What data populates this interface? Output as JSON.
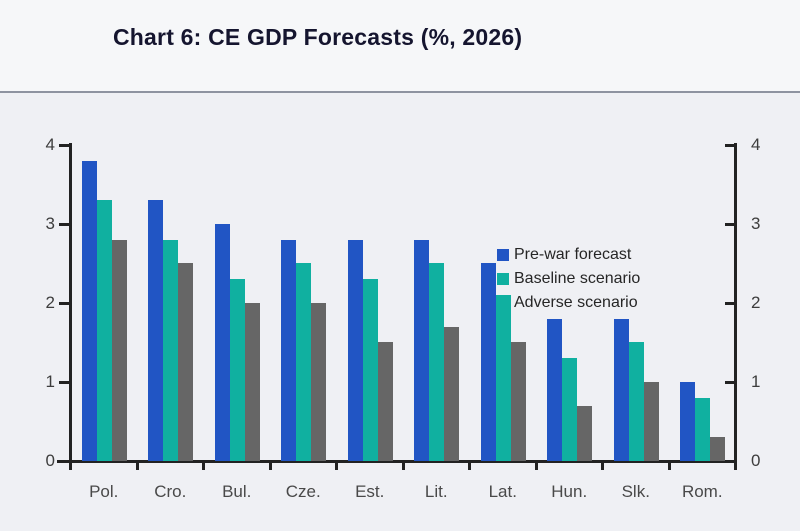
{
  "chart_data": {
    "type": "bar",
    "title": "Chart 6: CE GDP Forecasts (%, 2026)",
    "categories": [
      "Pol.",
      "Cro.",
      "Bul.",
      "Cze.",
      "Est.",
      "Lit.",
      "Lat.",
      "Hun.",
      "Slk.",
      "Rom."
    ],
    "series": [
      {
        "name": "Pre-war forecast",
        "color": "#2155c4",
        "values": [
          3.8,
          3.3,
          3.0,
          2.8,
          2.8,
          2.8,
          2.5,
          1.8,
          1.8,
          1.0
        ]
      },
      {
        "name": "Baseline scenario",
        "color": "#10b0a0",
        "values": [
          3.3,
          2.8,
          2.3,
          2.5,
          2.3,
          2.5,
          2.1,
          1.3,
          1.5,
          0.8
        ]
      },
      {
        "name": "Adverse scenario",
        "color": "#666666",
        "values": [
          2.8,
          2.5,
          2.0,
          2.0,
          1.5,
          1.7,
          1.5,
          0.7,
          1.0,
          0.3
        ]
      }
    ],
    "xlabel": "",
    "ylabel": "",
    "ylim": [
      0,
      4
    ],
    "yticks": [
      0,
      1,
      2,
      3,
      4
    ],
    "dual_axis": true,
    "grid": false,
    "legend_position": "top-right"
  },
  "colors": {
    "axis": "#222222",
    "title": "#15152f",
    "divider": "#8e93a0",
    "background_top": "#f6f7f9",
    "background_bottom": "#eff0f4",
    "tick_label": "#3d3d3d"
  }
}
